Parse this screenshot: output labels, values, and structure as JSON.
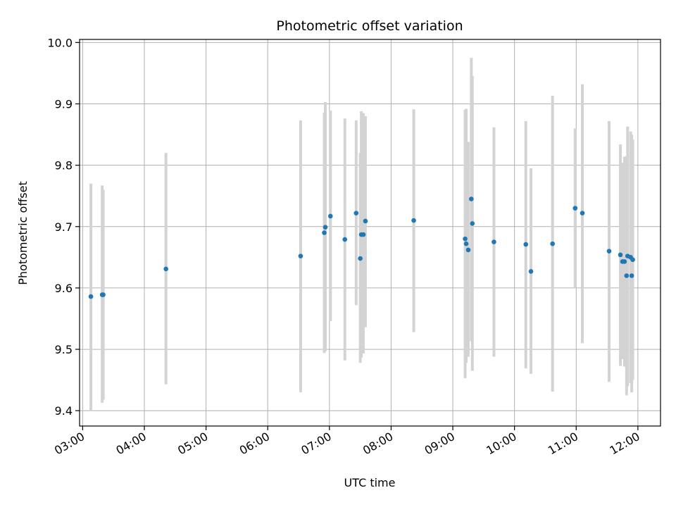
{
  "chart_data": {
    "type": "scatter",
    "title": "Photometric offset variation",
    "xlabel": "UTC time",
    "ylabel": "Photometric offset",
    "xlim": [
      "02:57",
      "12:22"
    ],
    "ylim": [
      9.375,
      10.005
    ],
    "x_ticks": [
      "03:00",
      "04:00",
      "05:00",
      "06:00",
      "07:00",
      "08:00",
      "09:00",
      "10:00",
      "11:00",
      "12:00"
    ],
    "y_ticks": [
      "9.4",
      "9.5",
      "9.6",
      "9.7",
      "9.8",
      "9.9",
      "10.0"
    ],
    "grid": true,
    "colors": {
      "points": "#1f77b4",
      "errorbars": "#d3d3d3",
      "grid": "#b0b0b0"
    },
    "series": [
      {
        "points": [
          {
            "x": "03:08",
            "y": 9.586,
            "ylo": 9.4,
            "yhi": 9.77
          },
          {
            "x": "03:19",
            "y": 9.589,
            "ylo": 9.413,
            "yhi": 9.767
          },
          {
            "x": "03:20",
            "y": 9.589,
            "ylo": 9.418,
            "yhi": 9.76
          },
          {
            "x": "04:21",
            "y": 9.631,
            "ylo": 9.443,
            "yhi": 9.82
          },
          {
            "x": "06:32",
            "y": 9.652,
            "ylo": 9.43,
            "yhi": 9.873
          },
          {
            "x": "06:55",
            "y": 9.69,
            "ylo": 9.494,
            "yhi": 9.886
          },
          {
            "x": "06:56",
            "y": 9.699,
            "ylo": 9.497,
            "yhi": 9.903
          },
          {
            "x": "07:01",
            "y": 9.717,
            "ylo": 9.546,
            "yhi": 9.889
          },
          {
            "x": "07:15",
            "y": 9.679,
            "ylo": 9.482,
            "yhi": 9.876
          },
          {
            "x": "07:26",
            "y": 9.722,
            "ylo": 9.572,
            "yhi": 9.873
          },
          {
            "x": "07:30",
            "y": 9.648,
            "ylo": 9.478,
            "yhi": 9.82
          },
          {
            "x": "07:31",
            "y": 9.687,
            "ylo": 9.486,
            "yhi": 9.888
          },
          {
            "x": "07:33",
            "y": 9.687,
            "ylo": 9.493,
            "yhi": 9.885
          },
          {
            "x": "07:35",
            "y": 9.709,
            "ylo": 9.536,
            "yhi": 9.88
          },
          {
            "x": "08:22",
            "y": 9.71,
            "ylo": 9.528,
            "yhi": 9.891
          },
          {
            "x": "09:12",
            "y": 9.68,
            "ylo": 9.453,
            "yhi": 9.89
          },
          {
            "x": "09:13",
            "y": 9.672,
            "ylo": 9.478,
            "yhi": 9.892
          },
          {
            "x": "09:15",
            "y": 9.662,
            "ylo": 9.488,
            "yhi": 9.838
          },
          {
            "x": "09:18",
            "y": 9.745,
            "ylo": 9.513,
            "yhi": 9.975
          },
          {
            "x": "09:19",
            "y": 9.705,
            "ylo": 9.465,
            "yhi": 9.945
          },
          {
            "x": "09:40",
            "y": 9.675,
            "ylo": 9.488,
            "yhi": 9.862
          },
          {
            "x": "10:11",
            "y": 9.671,
            "ylo": 9.469,
            "yhi": 9.872
          },
          {
            "x": "10:16",
            "y": 9.627,
            "ylo": 9.46,
            "yhi": 9.795
          },
          {
            "x": "10:37",
            "y": 9.672,
            "ylo": 9.431,
            "yhi": 9.913
          },
          {
            "x": "10:59",
            "y": 9.73,
            "ylo": 9.6,
            "yhi": 9.86
          },
          {
            "x": "11:06",
            "y": 9.722,
            "ylo": 9.51,
            "yhi": 9.932
          },
          {
            "x": "11:32",
            "y": 9.66,
            "ylo": 9.447,
            "yhi": 9.872
          },
          {
            "x": "11:43",
            "y": 9.654,
            "ylo": 9.473,
            "yhi": 9.834
          },
          {
            "x": "11:45",
            "y": 9.643,
            "ylo": 9.484,
            "yhi": 9.804
          },
          {
            "x": "11:47",
            "y": 9.643,
            "ylo": 9.472,
            "yhi": 9.814
          },
          {
            "x": "11:49",
            "y": 9.62,
            "ylo": 9.425,
            "yhi": 9.815
          },
          {
            "x": "11:50",
            "y": 9.652,
            "ylo": 9.44,
            "yhi": 9.863
          },
          {
            "x": "11:53",
            "y": 9.65,
            "ylo": 9.445,
            "yhi": 9.855
          },
          {
            "x": "11:54",
            "y": 9.62,
            "ylo": 9.43,
            "yhi": 9.85
          },
          {
            "x": "11:55",
            "y": 9.646,
            "ylo": 9.45,
            "yhi": 9.842
          }
        ]
      }
    ]
  }
}
